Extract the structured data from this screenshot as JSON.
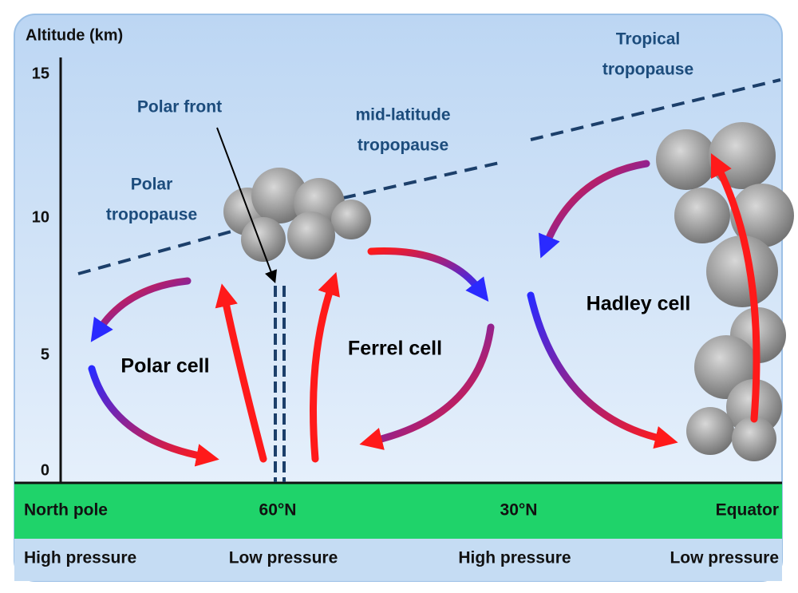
{
  "axis": {
    "label": "Altitude (km)",
    "ticks": [
      15,
      10,
      5,
      0
    ]
  },
  "labels": {
    "tropical_tropopause": [
      "Tropical",
      "tropopause"
    ],
    "mid_latitude_tropopause": [
      "mid-latitude",
      "tropopause"
    ],
    "polar_tropopause": [
      "Polar",
      "tropopause"
    ],
    "polar_front": "Polar front",
    "hadley_cell": "Hadley cell",
    "ferrel_cell": "Ferrel cell",
    "polar_cell": "Polar cell"
  },
  "latitudes": [
    "North pole",
    "60°N",
    "30°N",
    "Equator"
  ],
  "pressures": [
    "High pressure",
    "Low pressure",
    "High pressure",
    "Low pressure"
  ]
}
